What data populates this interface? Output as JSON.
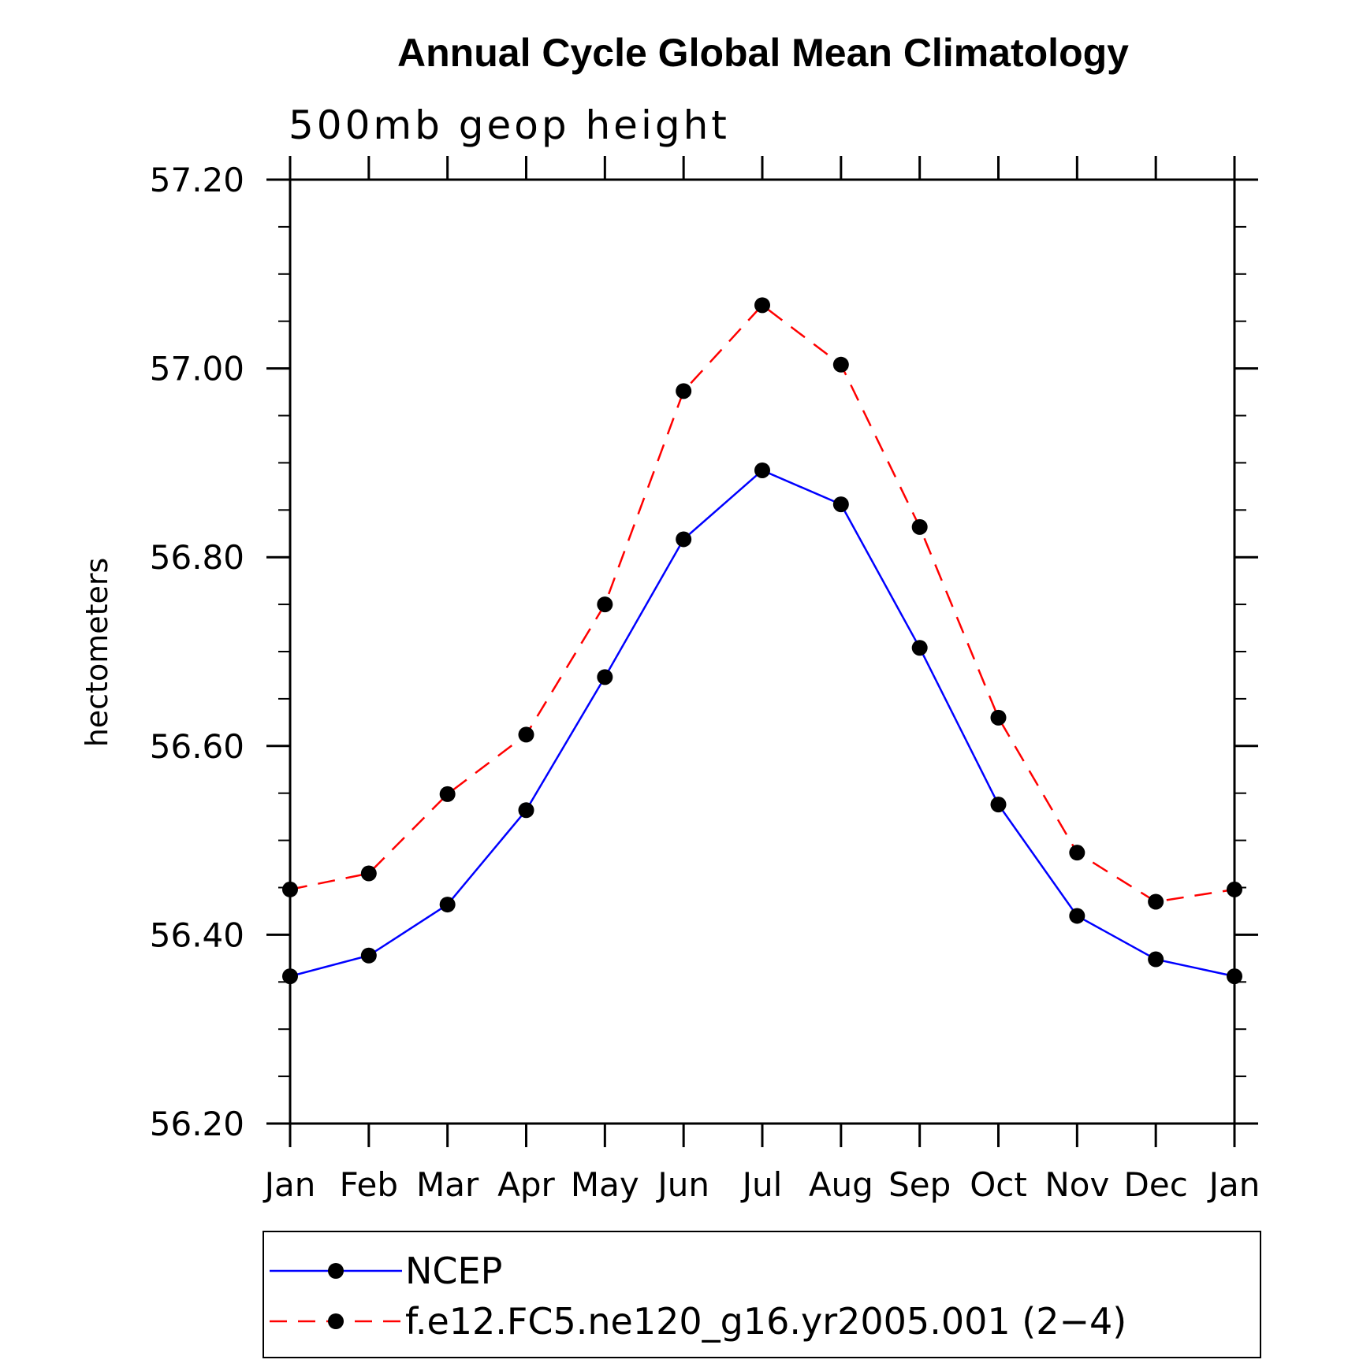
{
  "chart_data": {
    "type": "line",
    "title": "Annual Cycle Global Mean Climatology",
    "subtitle": "500mb geop height",
    "ylabel": "hectometers",
    "xlabel": "",
    "categories": [
      "Jan",
      "Feb",
      "Mar",
      "Apr",
      "May",
      "Jun",
      "Jul",
      "Aug",
      "Sep",
      "Oct",
      "Nov",
      "Dec",
      "Jan"
    ],
    "ylim": [
      56.2,
      57.2
    ],
    "yticks": [
      "56.20",
      "56.40",
      "56.60",
      "56.80",
      "57.00",
      "57.20"
    ],
    "legend_position": "bottom",
    "grid": false,
    "series": [
      {
        "name": "NCEP",
        "color": "#0000ff",
        "style": "solid",
        "values": [
          56.356,
          56.378,
          56.432,
          56.532,
          56.673,
          56.819,
          56.892,
          56.856,
          56.704,
          56.538,
          56.42,
          56.374,
          56.356
        ]
      },
      {
        "name": "f.e12.FC5.ne120_g16.yr2005.001 (2−4)",
        "color": "#ff0000",
        "style": "dashed",
        "values": [
          56.448,
          56.465,
          56.549,
          56.612,
          56.75,
          56.976,
          57.067,
          57.004,
          56.832,
          56.63,
          56.487,
          56.435,
          56.448
        ]
      }
    ]
  }
}
